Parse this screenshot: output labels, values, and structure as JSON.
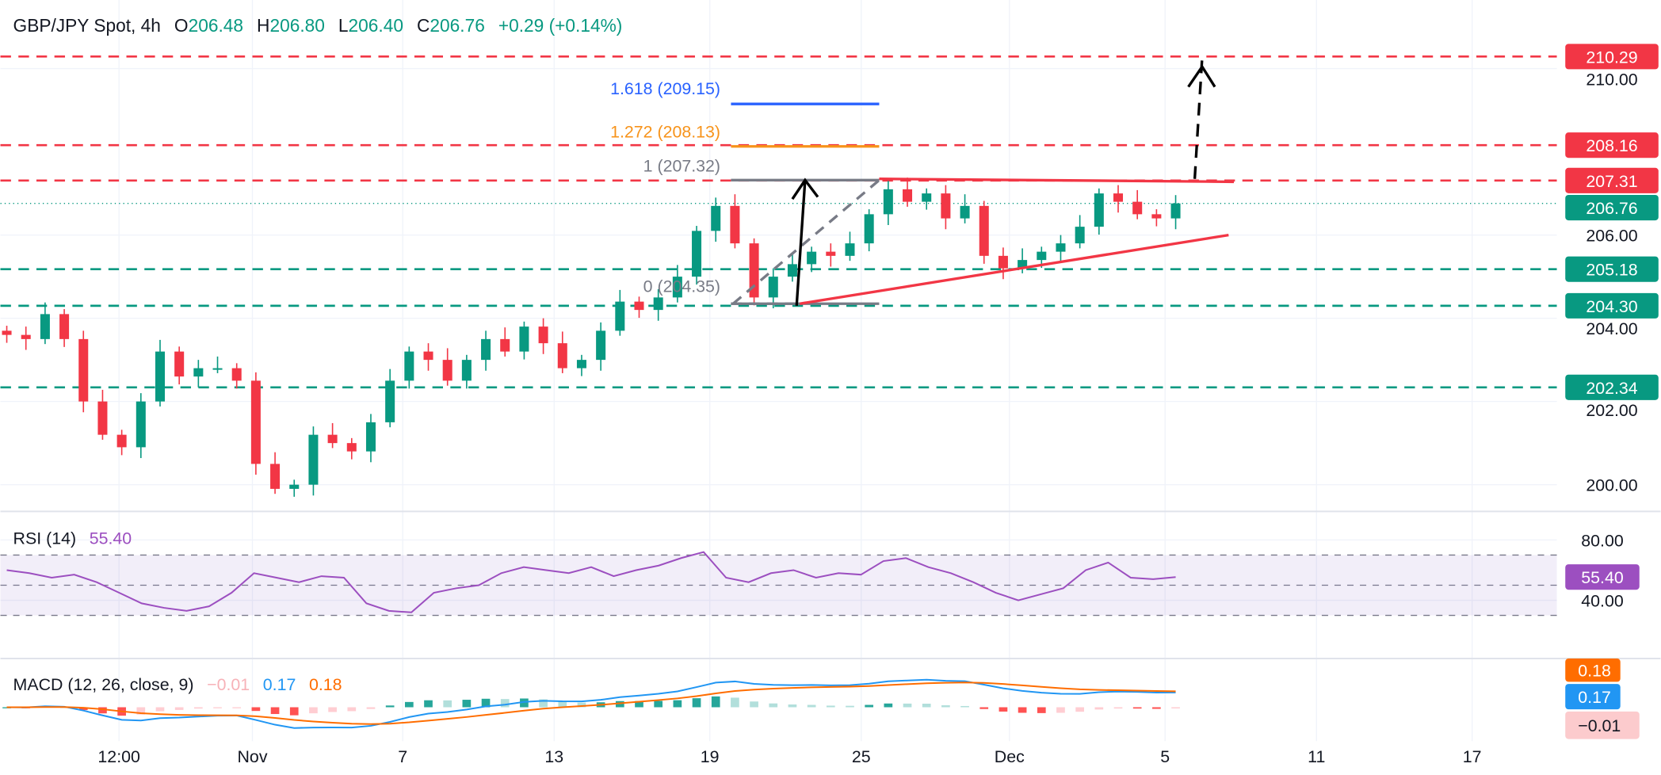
{
  "header": {
    "symbol": "GBP/JPY Spot, 4h",
    "o_label": "O",
    "o": "206.48",
    "h_label": "H",
    "h": "206.80",
    "l_label": "L",
    "l": "206.40",
    "c_label": "C",
    "c": "206.76",
    "change": "+0.29 (+0.14%)"
  },
  "colors": {
    "up": "#089981",
    "down": "#f23645",
    "rsi": "#9c4fc0",
    "macd": "#2196f3",
    "signal": "#ff6d00",
    "fib_1618": "#2962ff",
    "fib_1272": "#f7931a",
    "fib_gray": "#787b86"
  },
  "chart_data": {
    "type": "candlestick",
    "title": "GBP/JPY Spot, 4h",
    "closes": [
      203.6,
      203.5,
      204.1,
      203.5,
      202.0,
      201.2,
      200.9,
      202.0,
      203.2,
      202.6,
      202.8,
      202.8,
      202.5,
      200.5,
      199.9,
      200.0,
      201.2,
      201.0,
      200.8,
      201.5,
      202.5,
      203.2,
      203.0,
      202.5,
      203.0,
      203.5,
      203.2,
      203.8,
      203.4,
      202.8,
      203.0,
      203.7,
      204.4,
      204.2,
      204.5,
      205.0,
      206.1,
      206.7,
      205.8,
      204.5,
      205.0,
      205.3,
      205.6,
      205.5,
      205.8,
      206.5,
      207.1,
      206.8,
      207.0,
      206.4,
      206.7,
      205.5,
      205.2,
      205.4,
      205.6,
      205.8,
      206.2,
      207.0,
      206.8,
      206.5,
      206.4,
      206.76
    ],
    "price_ylim": [
      199.3,
      211.3
    ],
    "price_ticks": [
      "210.00",
      "206.00",
      "204.00",
      "202.00",
      "200.00"
    ],
    "price_tick_values": [
      210,
      206,
      204,
      202,
      200
    ],
    "x_ticks": [
      "12:00",
      "Nov",
      "7",
      "13",
      "19",
      "25",
      "Dec",
      "5",
      "11",
      "17"
    ],
    "levels": [
      {
        "value": 210.29,
        "label": "210.29",
        "kind": "resistance"
      },
      {
        "value": 208.16,
        "label": "208.16",
        "kind": "resistance"
      },
      {
        "value": 207.31,
        "label": "207.31",
        "kind": "resistance"
      },
      {
        "value": 205.18,
        "label": "205.18",
        "kind": "support"
      },
      {
        "value": 204.3,
        "label": "204.30",
        "kind": "support"
      },
      {
        "value": 202.34,
        "label": "202.34",
        "kind": "support"
      }
    ],
    "current_price": {
      "value": 206.76,
      "label": "206.76"
    },
    "fib": [
      {
        "ratio": 1.618,
        "value": 209.15,
        "label": "1.618 (209.15)"
      },
      {
        "ratio": 1.272,
        "value": 208.13,
        "label": "1.272 (208.13)"
      },
      {
        "ratio": 1,
        "value": 207.32,
        "label": "1 (207.32)"
      },
      {
        "ratio": 0,
        "value": 204.35,
        "label": "0 (204.35)"
      }
    ],
    "rsi": {
      "legend": "RSI (14)",
      "value": "55.40",
      "values": [
        60,
        58,
        55,
        57,
        52,
        45,
        38,
        35,
        33,
        36,
        45,
        58,
        55,
        52,
        56,
        55,
        38,
        33,
        32,
        45,
        48,
        50,
        58,
        62,
        60,
        58,
        62,
        56,
        60,
        63,
        68,
        72,
        55,
        52,
        58,
        60,
        55,
        58,
        57,
        66,
        68,
        62,
        58,
        52,
        45,
        40,
        44,
        48,
        60,
        65,
        55,
        54,
        55.4
      ],
      "ylim": [
        20,
        95
      ],
      "ticks": [
        "80.00",
        "40.00"
      ],
      "tick_values": [
        80,
        40
      ],
      "bands": [
        70,
        50,
        30
      ]
    },
    "macd": {
      "legend": "MACD (12, 26, close, 9)",
      "hist": "−0.01",
      "macd": "0.17",
      "signal": "0.18",
      "tag_signal": "0.18",
      "tag_macd": "0.17",
      "tag_hist": "−0.01"
    }
  }
}
